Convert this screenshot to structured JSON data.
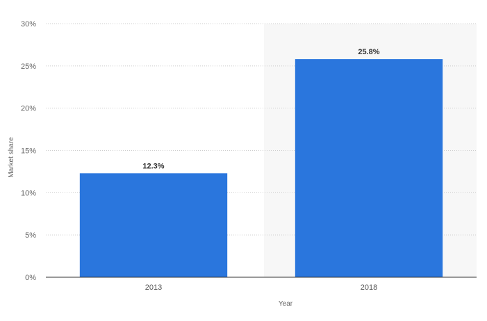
{
  "chart_data": {
    "type": "bar",
    "categories": [
      "2013",
      "2018"
    ],
    "values": [
      12.3,
      25.8
    ],
    "data_labels": [
      "12.3%",
      "25.8%"
    ],
    "xlabel": "Year",
    "ylabel": "Market share",
    "ylim": [
      0,
      30
    ],
    "yticks": [
      0,
      5,
      10,
      15,
      20,
      25,
      30
    ],
    "ytick_labels": [
      "0%",
      "5%",
      "10%",
      "15%",
      "20%",
      "25%",
      "30%"
    ],
    "grid": true,
    "highlighted_category": "2018",
    "colors": {
      "bar": "#2a76dd",
      "highlight_background": "#f7f7f7",
      "grid": "#cccccc",
      "axis": "#333333"
    }
  }
}
